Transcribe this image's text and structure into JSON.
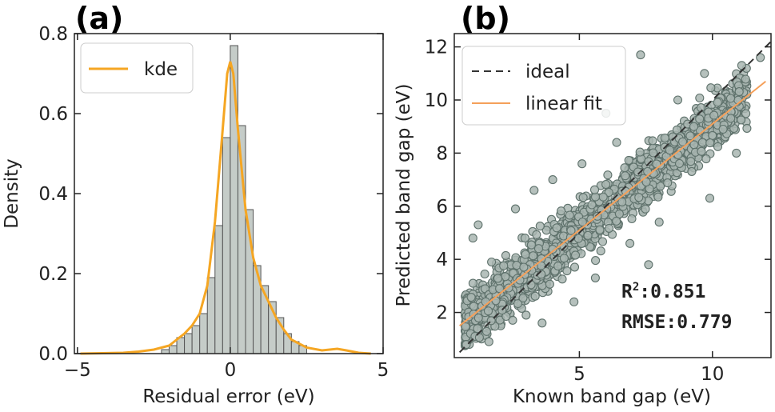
{
  "chart_data": [
    {
      "id": "a",
      "panel_label": "(a)",
      "type": "bar",
      "xlabel": "Residual error (eV)",
      "ylabel": "Density",
      "xlim": [
        -5.1,
        5.0
      ],
      "ylim": [
        0,
        0.8
      ],
      "xticks": [
        -5,
        0,
        5
      ],
      "xtick_labels": [
        "−5",
        "0",
        "5"
      ],
      "yticks": [
        0.0,
        0.2,
        0.4,
        0.6,
        0.8
      ],
      "ytick_labels": [
        "0.0",
        "0.2",
        "0.4",
        "0.6",
        "0.8"
      ],
      "bin_width": 0.25,
      "bin_lefts": [
        -2.25,
        -2.0,
        -1.75,
        -1.5,
        -1.25,
        -1.0,
        -0.75,
        -0.5,
        -0.25,
        0.0,
        0.25,
        0.5,
        0.75,
        1.0,
        1.25,
        1.5,
        1.75,
        2.0,
        2.25
      ],
      "values": [
        0.01,
        0.02,
        0.04,
        0.05,
        0.07,
        0.1,
        0.19,
        0.32,
        0.54,
        0.77,
        0.57,
        0.36,
        0.22,
        0.17,
        0.13,
        0.09,
        0.05,
        0.03,
        0.02
      ],
      "kde": {
        "name": "kde",
        "color": "#f5a623",
        "x": [
          -4.9,
          -3.5,
          -3.0,
          -2.5,
          -2.0,
          -1.75,
          -1.5,
          -1.25,
          -1.0,
          -0.75,
          -0.5,
          -0.25,
          -0.1,
          0.0,
          0.1,
          0.25,
          0.5,
          0.75,
          1.0,
          1.25,
          1.5,
          1.75,
          2.0,
          2.5,
          3.0,
          3.5,
          3.8,
          4.2,
          4.6
        ],
        "y": [
          0.0,
          0.002,
          0.005,
          0.01,
          0.02,
          0.035,
          0.05,
          0.07,
          0.1,
          0.17,
          0.33,
          0.56,
          0.7,
          0.73,
          0.7,
          0.56,
          0.36,
          0.24,
          0.17,
          0.13,
          0.09,
          0.06,
          0.035,
          0.015,
          0.008,
          0.012,
          0.008,
          0.002,
          0.0
        ]
      },
      "bar_fill": "#c5ccc8",
      "bar_stroke": "#555555",
      "legend": {
        "entries": [
          "kde"
        ],
        "placement": "top-left"
      }
    },
    {
      "id": "b",
      "panel_label": "(b)",
      "type": "scatter",
      "xlabel": "Known band gap (eV)",
      "ylabel": "Predicted band gap (eV)",
      "xlim": [
        0.3,
        12.2
      ],
      "ylim": [
        0.3,
        12.5
      ],
      "xticks": [
        5,
        10
      ],
      "xtick_labels": [
        "5",
        "10"
      ],
      "yticks": [
        2,
        4,
        6,
        8,
        10,
        12
      ],
      "ytick_labels": [
        "2",
        "4",
        "6",
        "8",
        "10",
        "12"
      ],
      "ideal_line": {
        "name": "ideal",
        "x": [
          0.5,
          12.2
        ],
        "y": [
          0.5,
          12.2
        ],
        "color": "#333333",
        "style": "dashed"
      },
      "fit_line": {
        "name": "linear fit",
        "x": [
          0.5,
          12.0
        ],
        "y": [
          1.5,
          10.7
        ],
        "color": "#f5a05a"
      },
      "scatter_fill": "#a9b6b1",
      "scatter_stroke": "#5f726c",
      "outliers": {
        "x": [
          7.3,
          5.1,
          3.3,
          1.2,
          1.0,
          2.6,
          4.0,
          6.4,
          9.3,
          10.4,
          11.1,
          8.7,
          4.8,
          3.0,
          2.0,
          6.9,
          8.0,
          9.9,
          10.9,
          7.6,
          5.6,
          3.6,
          1.6,
          11.8,
          9.7,
          6.0
        ],
        "y": [
          11.7,
          7.6,
          6.6,
          5.3,
          4.8,
          5.9,
          7.0,
          8.4,
          9.0,
          8.9,
          11.3,
          10.0,
          2.4,
          1.9,
          2.9,
          4.6,
          5.4,
          6.3,
          8.0,
          3.8,
          3.3,
          1.6,
          0.9,
          11.6,
          11.0,
          9.5
        ]
      },
      "sample_note": "scatter cloud drawn around linear fit with spread ~0.8 eV; exact points not legible",
      "legend": {
        "entries": [
          "ideal",
          "linear fit"
        ],
        "placement": "top-left"
      },
      "stats": {
        "r2_label": "R",
        "r2_sup": "2",
        "r2_value": ":0.851",
        "rmse_label": "RMSE:0.779"
      }
    }
  ]
}
